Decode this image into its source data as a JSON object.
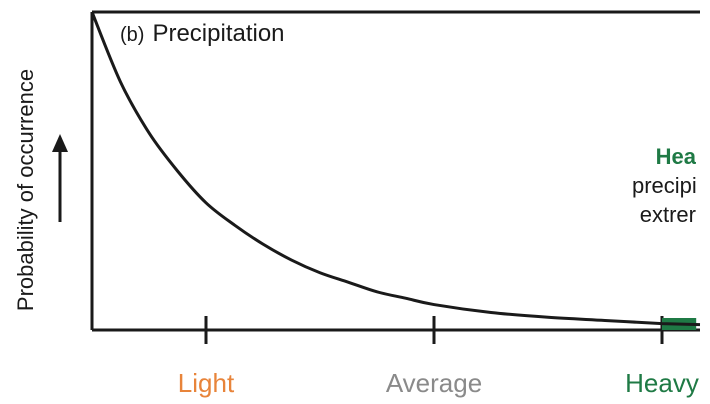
{
  "chart_data": {
    "type": "line",
    "panel_label": "(b)",
    "title": "Precipitation",
    "ylabel": "Probability of occurrence",
    "categories": [
      "Light",
      "Average",
      "Heavy"
    ],
    "category_colors": [
      "#e8843a",
      "#8a8a8a",
      "#1f7a45"
    ],
    "x": [
      0,
      0.5,
      1,
      1.5,
      2,
      2.5,
      3,
      3.5,
      4,
      4.5,
      5,
      5.5,
      6,
      7,
      8,
      9,
      10
    ],
    "values": [
      1.0,
      0.78,
      0.62,
      0.5,
      0.4,
      0.33,
      0.27,
      0.22,
      0.18,
      0.15,
      0.12,
      0.1,
      0.08,
      0.055,
      0.04,
      0.03,
      0.02
    ],
    "xlim": [
      0,
      10
    ],
    "ylim": [
      0,
      1.0
    ],
    "tick_positions": [
      2,
      6,
      10
    ],
    "shaded_region": {
      "from": 10,
      "to": 10.6,
      "color": "#1f7a45"
    },
    "annotation": [
      "Hea",
      "precipit",
      "extrer"
    ],
    "line_color": "#1a1a1a",
    "grid": false
  }
}
